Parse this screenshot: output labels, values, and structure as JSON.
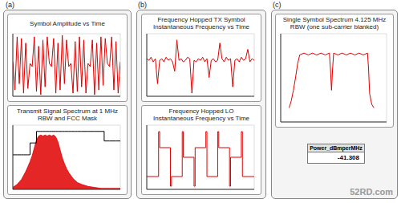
{
  "panel_labels": [
    "(a)",
    "(b)",
    "(c)"
  ],
  "watermark": "52RD.com",
  "readout": {
    "label": "Power_dBmperMHz",
    "value": -41.308
  },
  "chart_data": [
    {
      "type": "line",
      "title": "Symbol Amplitude vs Time",
      "tick_labels": false,
      "grid": true,
      "x": [
        0,
        2,
        4,
        6,
        8,
        10,
        12,
        14,
        16,
        18,
        20,
        22,
        24,
        26,
        28,
        30,
        32,
        34,
        36,
        38,
        40,
        42,
        44,
        46,
        48,
        50,
        52,
        54,
        56,
        58,
        60,
        62,
        64,
        66,
        68,
        70,
        72,
        74,
        76,
        78,
        80,
        82,
        84,
        86,
        88,
        90,
        92,
        94,
        96,
        98,
        100
      ],
      "xlim": [
        0,
        100
      ],
      "xticks": [
        0,
        20,
        40,
        60,
        80,
        100
      ],
      "ylim": [
        -1,
        1
      ],
      "yticks": [
        -1,
        -0.5,
        0,
        0.5,
        1
      ],
      "series": [
        {
          "color": "#e00000",
          "values": [
            0.1,
            -0.8,
            0.9,
            -0.6,
            0.85,
            -0.9,
            0.7,
            -0.75,
            0.05,
            -0.05,
            0.9,
            -0.85,
            0.6,
            -0.95,
            0.8,
            -0.7,
            0.9,
            0.05,
            -0.05,
            0.85,
            -0.9,
            0.7,
            -0.8,
            0.95,
            -0.6,
            0.8,
            -0.05,
            0.05,
            -0.9,
            0.75,
            -0.85,
            0.9,
            -0.7,
            0.8,
            -0.9,
            0.05,
            -0.05,
            0.8,
            -0.95,
            0.7,
            -0.8,
            0.9,
            -0.65,
            0.85,
            0.05,
            -0.05,
            0.9,
            -0.8,
            0.75,
            -0.9,
            0.1
          ]
        }
      ]
    },
    {
      "type": "line",
      "title": "Transmit Signal Spectrum at 1 MHz RBW and FCC Mask",
      "tick_labels": false,
      "grid": true,
      "x": [
        0,
        4,
        8,
        10,
        12,
        14,
        16,
        18,
        20,
        22,
        24,
        26,
        28,
        30,
        32,
        34,
        36,
        38,
        40,
        42,
        44,
        46,
        48,
        50,
        52,
        54,
        56,
        58,
        60,
        64,
        70,
        76,
        82,
        85,
        90,
        96,
        100
      ],
      "xlim": [
        0,
        100
      ],
      "xticks": [
        0,
        20,
        40,
        60,
        80,
        100
      ],
      "ylim": [
        -100,
        -35
      ],
      "yticks": [
        -100,
        -87,
        -74,
        -61,
        -48,
        -35
      ],
      "series": [
        {
          "type": "area",
          "color": "#e00000",
          "values": [
            -98,
            -95,
            -90,
            -86,
            -82,
            -77,
            -72,
            -66,
            -58,
            -50,
            -46,
            -45,
            -46,
            -45,
            -46,
            -45,
            -46,
            -45,
            -47,
            -52,
            -60,
            -68,
            -74,
            -79,
            -83,
            -86,
            -89,
            -91,
            -93,
            -95,
            -97,
            -98,
            -99,
            -99,
            -99,
            -99,
            -99
          ]
        },
        {
          "type": "line",
          "line_style": "step",
          "color": "#000000",
          "values": [
            -65,
            -65,
            -65,
            -65,
            -65,
            -65,
            -53,
            -53,
            -53,
            -41.3,
            -41.3,
            -41.3,
            -41.3,
            -41.3,
            -41.3,
            -41.3,
            -41.3,
            -41.3,
            -41.3,
            -41.3,
            -41.3,
            -41.3,
            -41.3,
            -41.3,
            -41.3,
            -41.3,
            -41.3,
            -41.3,
            -41.3,
            -41.3,
            -41.3,
            -41.3,
            -41.3,
            -51,
            -51,
            -51,
            -51
          ]
        }
      ]
    },
    {
      "type": "line",
      "title": "Frequency Hopped TX Symbol Instantaneous Frequency vs Time",
      "tick_labels": false,
      "grid": true,
      "x": [
        0,
        2,
        4,
        6,
        8,
        10,
        12,
        14,
        16,
        18,
        20,
        22,
        24,
        26,
        28,
        30,
        32,
        34,
        36,
        38,
        40,
        42,
        44,
        46,
        48,
        50,
        52,
        54,
        56,
        58,
        60,
        62,
        64,
        66,
        68,
        70,
        72,
        74,
        76,
        78,
        80,
        82,
        84,
        86,
        88,
        90,
        92,
        94,
        96,
        98,
        100
      ],
      "xlim": [
        0,
        100
      ],
      "xticks": [
        0,
        20,
        40,
        60,
        80,
        100
      ],
      "ylim": [
        -1,
        1
      ],
      "yticks": [
        -1,
        -0.5,
        0,
        0.5,
        1
      ],
      "series": [
        {
          "color": "#e00000",
          "values": [
            0.2,
            0.15,
            0.25,
            0.1,
            0.2,
            -0.6,
            0.15,
            0.2,
            0.1,
            0.25,
            0.15,
            0.2,
            0.1,
            -0.2,
            0.8,
            0.15,
            0.2,
            0.1,
            0.15,
            0.25,
            0.2,
            -0.9,
            0.15,
            0.1,
            0.2,
            0.15,
            0.25,
            0.1,
            0.2,
            -0.4,
            0.15,
            0.2,
            0.1,
            0.15,
            0.7,
            0.2,
            0.1,
            0.25,
            0.15,
            0.2,
            -0.7,
            0.15,
            0.2,
            0.1,
            0.25,
            0.15,
            0.2,
            0.5,
            0.1,
            0.2,
            0.15
          ]
        }
      ]
    },
    {
      "type": "line",
      "title": "Frequency Hopped LO Instantaneous Frequency vs Time",
      "tick_labels": false,
      "grid": true,
      "x": [
        0,
        11,
        12,
        22,
        23,
        33,
        34,
        44,
        45,
        55,
        56,
        66,
        67,
        77,
        78,
        88,
        89,
        100
      ],
      "xlim": [
        0,
        100
      ],
      "xticks": [
        0,
        20,
        40,
        60,
        80,
        100
      ],
      "ylim": [
        -1,
        1
      ],
      "yticks": [
        -1,
        -0.5,
        0,
        0.5,
        1
      ],
      "series": [
        {
          "color": "#e00000",
          "line_style": "step",
          "values": [
            -0.6,
            0.8,
            0.3,
            -0.9,
            -0.6,
            0.8,
            0.0,
            -0.9,
            0.3,
            0.8,
            -0.6,
            0.8,
            0.3,
            -0.9,
            0.0,
            0.8,
            -0.6,
            -0.6
          ]
        }
      ]
    },
    {
      "type": "line",
      "title": "Single Symbol Spectrum 4.125 MHz RBW (one sub-carrier blanked)",
      "tick_labels": false,
      "grid": true,
      "x": [
        8,
        10,
        12,
        14,
        16,
        18,
        22,
        26,
        30,
        34,
        38,
        42,
        46,
        47,
        48,
        49,
        50,
        54,
        58,
        62,
        66,
        70,
        74,
        78,
        82,
        83,
        84,
        86,
        88
      ],
      "xlim": [
        0,
        100
      ],
      "xticks": [
        0,
        20,
        40,
        60,
        80,
        100
      ],
      "ylim": [
        -80,
        -30
      ],
      "yticks": [
        -80,
        -70,
        -60,
        -50,
        -40,
        -30
      ],
      "series": [
        {
          "color": "#e00000",
          "values": [
            -72,
            -68,
            -62,
            -55,
            -47,
            -42,
            -41,
            -42,
            -41,
            -42,
            -41,
            -42,
            -41,
            -50,
            -62,
            -50,
            -41,
            -42,
            -41,
            -42,
            -41,
            -42,
            -41,
            -42,
            -41,
            -50,
            -64,
            -70,
            -72
          ]
        }
      ]
    }
  ]
}
